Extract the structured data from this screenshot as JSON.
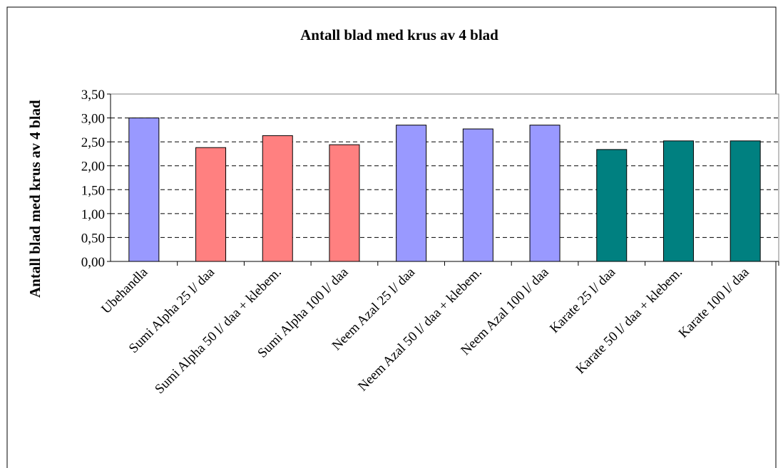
{
  "chart_data": {
    "type": "bar",
    "title": "Antall blad med krus av 4 blad",
    "y_label": "Antall blad med krus av 4 blad",
    "categories": [
      "Ubehandla",
      "Sumi Alpha 25 l/ daa",
      "Sumi Alpha 50 l/ daa + klebem.",
      "Sumi Alpha 100 l/ daa",
      "Neem Azal 25 l/ daa",
      "Neem Azal 50 l/ daa + klebem.",
      "Neem Azal 100 l/ daa",
      "Karate 25 l/ daa",
      "Karate 50 l/ daa + klebem.",
      "Karate 100 l/ daa"
    ],
    "values": [
      3.0,
      2.38,
      2.63,
      2.44,
      2.85,
      2.77,
      2.85,
      2.34,
      2.52,
      2.52
    ],
    "colors": [
      "#9999ff",
      "#ff8080",
      "#ff8080",
      "#ff8080",
      "#9999ff",
      "#9999ff",
      "#9999ff",
      "#008080",
      "#008080",
      "#008080"
    ],
    "ylim": [
      0,
      3.5
    ],
    "yticks": [
      {
        "value": 0,
        "label": "0,00"
      },
      {
        "value": 0.5,
        "label": "0,50"
      },
      {
        "value": 1,
        "label": "1,00"
      },
      {
        "value": 1.5,
        "label": "1,50"
      },
      {
        "value": 2,
        "label": "2,00"
      },
      {
        "value": 2.5,
        "label": "2,50"
      },
      {
        "value": 3,
        "label": "3,00"
      },
      {
        "value": 3.5,
        "label": "3,50"
      }
    ],
    "grid": true
  }
}
